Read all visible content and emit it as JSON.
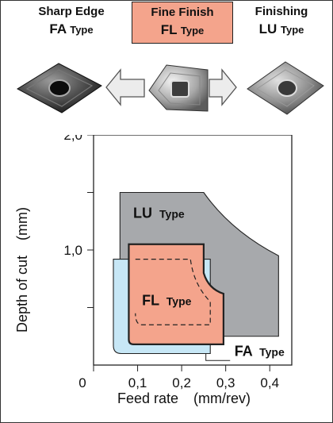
{
  "header": {
    "fa": {
      "line1": "Sharp Edge",
      "code": "FA",
      "suffix": "Type"
    },
    "fl": {
      "line1": "Fine Finish",
      "code": "FL",
      "suffix": "Type"
    },
    "lu": {
      "line1": "Finishing",
      "code": "LU",
      "suffix": "Type"
    }
  },
  "colors": {
    "lu": "#a7a9ac",
    "fl": "#f4a48c",
    "fa": "#c7e7f6",
    "axis": "#222222"
  },
  "icons": [
    "insert-fa-icon",
    "arrow-left-icon",
    "insert-fl-icon",
    "arrow-right-icon",
    "insert-lu-icon"
  ],
  "chart_data": {
    "type": "area",
    "xlabel": "Feed rate",
    "xunit": "(mm/rev)",
    "ylabel": "Depth of cut",
    "yunit": "(mm)",
    "xlim": [
      0,
      0.45
    ],
    "ylim": [
      0,
      2.0
    ],
    "x_ticks": [
      "0",
      "0,1",
      "0,2",
      "0,3",
      "0,4"
    ],
    "y_ticks": [
      "1,0",
      "2,0"
    ],
    "regions": [
      {
        "name": "LU",
        "suffix": "Type",
        "color": "#a7a9ac",
        "points": [
          [
            0.06,
            0.25
          ],
          [
            0.06,
            1.5
          ],
          [
            0.25,
            1.5
          ],
          [
            0.29,
            1.22
          ],
          [
            0.42,
            0.95
          ],
          [
            0.42,
            0.25
          ]
        ]
      },
      {
        "name": "FA",
        "suffix": "Type",
        "color": "#c7e7f6",
        "points": [
          [
            0.045,
            0.1
          ],
          [
            0.045,
            0.92
          ],
          [
            0.265,
            0.92
          ],
          [
            0.265,
            0.1
          ]
        ]
      },
      {
        "name": "FL",
        "suffix": "Type",
        "color": "#f4a48c",
        "points": [
          [
            0.08,
            0.18
          ],
          [
            0.08,
            1.05
          ],
          [
            0.25,
            1.05
          ],
          [
            0.25,
            0.8
          ],
          [
            0.295,
            0.62
          ],
          [
            0.295,
            0.18
          ]
        ]
      }
    ]
  }
}
